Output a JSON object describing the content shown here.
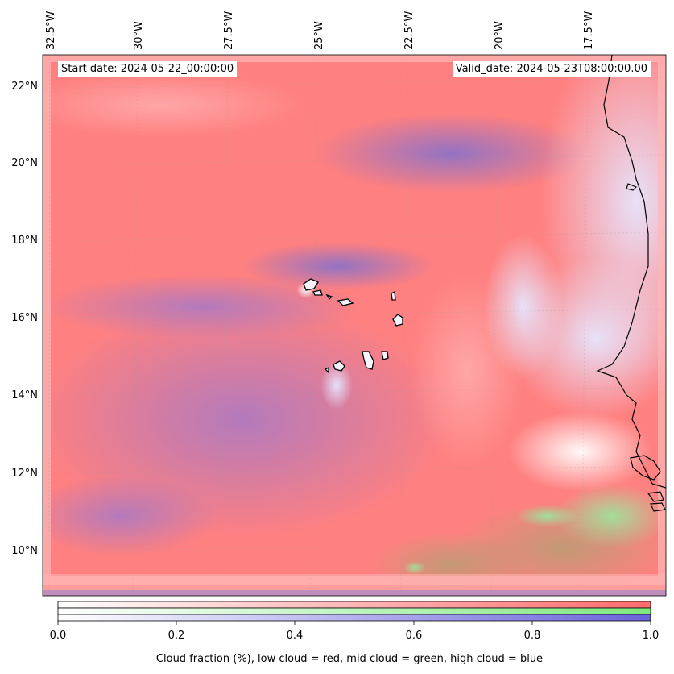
{
  "header": {
    "start_date": "Start date: 2024-05-22_00:00:00",
    "valid_date": "Valid_date: 2024-05-23T08:00:00.00"
  },
  "map": {
    "lon_labels": [
      "32.5°W",
      "30°W",
      "27.5°W",
      "25°W",
      "22.5°W",
      "20°W",
      "17.5°W"
    ],
    "lat_labels": [
      "22°N",
      "20°N",
      "18°N",
      "16°N",
      "14°N",
      "12°N",
      "10°N"
    ],
    "colors": {
      "low_cloud": "#ff7f7f",
      "mid_cloud": "#8ee88e",
      "high_cloud": "#7f74d8",
      "coastline": "#000000"
    }
  },
  "colorbar": {
    "ticks": [
      "0.0",
      "0.2",
      "0.4",
      "0.6",
      "0.8",
      "1.0"
    ],
    "label": "Cloud fraction (%), low cloud = red, mid cloud = green, high cloud = blue",
    "colors": {
      "red": "#ff6b6b",
      "green": "#7ee87e",
      "blue": "#6a62dc"
    }
  }
}
